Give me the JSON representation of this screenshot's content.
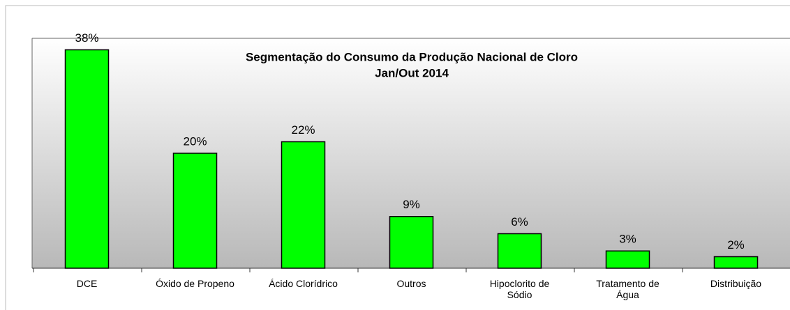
{
  "chart_data": {
    "type": "bar",
    "title": "Segmentação do Consumo da Produção Nacional de Cloro",
    "subtitle": "Jan/Out 2014",
    "categories": [
      "DCE",
      "Óxido de Propeno",
      "Ácido Clorídrico",
      "Outros",
      "Hipoclorito de Sódio",
      "Tratamento de Água",
      "Distribuição"
    ],
    "values": [
      38,
      20,
      22,
      9,
      6,
      3,
      2
    ],
    "value_labels": [
      "38%",
      "20%",
      "22%",
      "9%",
      "6%",
      "3%",
      "2%"
    ],
    "color": "#00ff00",
    "ylim": [
      0,
      40
    ]
  }
}
